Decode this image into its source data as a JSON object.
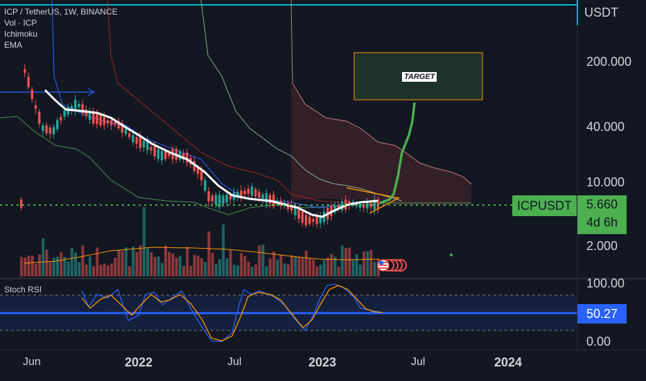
{
  "legend": {
    "symbol_line": "ICP / TetherUS, 1W, BINANCE",
    "indicators": [
      "Vol · ICP",
      "Ichimoku",
      "EMA"
    ]
  },
  "price_axis": {
    "currency": "USDT",
    "ticks": [
      "200.000",
      "40.000",
      "10.000",
      "2.000"
    ]
  },
  "stoch_axis": {
    "label": "Stoch RSI",
    "ticks": [
      "100.00",
      "0.00"
    ],
    "value": "50.27"
  },
  "time_axis": {
    "ticks": [
      {
        "label": "Jun",
        "bold": false
      },
      {
        "label": "2022",
        "bold": true
      },
      {
        "label": "Jul",
        "bold": false
      },
      {
        "label": "2023",
        "bold": true
      },
      {
        "label": "Jul",
        "bold": false
      },
      {
        "label": "2024",
        "bold": true
      }
    ]
  },
  "current": {
    "symbol": "ICPUSDT",
    "price": "5.660",
    "countdown": "4d 6h"
  },
  "annotation": {
    "target_label": "TARGET"
  },
  "colors": {
    "background": "#131722",
    "up": "#26a69a",
    "down": "#ef5350",
    "accent_green": "#4caf50",
    "stoch_blue": "#2962ff",
    "ema": "#ffffff",
    "target_box_border": "#ff9800"
  },
  "icons": [
    "us-flag-icon",
    "event-marker-icon"
  ]
}
